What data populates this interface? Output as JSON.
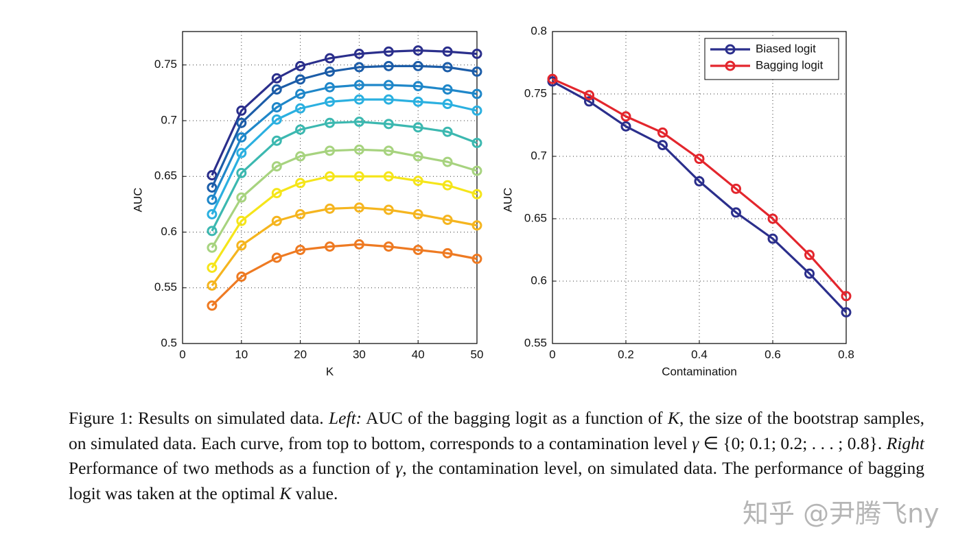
{
  "chart_data": [
    {
      "type": "line",
      "xlabel": "K",
      "ylabel": "AUC",
      "x": [
        5,
        10,
        16,
        20,
        25,
        30,
        35,
        40,
        45,
        50
      ],
      "xlim": [
        0,
        50
      ],
      "xticks": [
        0,
        10,
        20,
        30,
        40,
        50
      ],
      "ylim": [
        0.5,
        0.78
      ],
      "yticks": [
        0.5,
        0.55,
        0.6,
        0.65,
        0.7,
        0.75
      ],
      "grid": true,
      "series": [
        {
          "color": "#2b2f8c",
          "values": [
            0.651,
            0.709,
            0.738,
            0.749,
            0.756,
            0.76,
            0.762,
            0.763,
            0.762,
            0.76
          ]
        },
        {
          "color": "#1c5da8",
          "values": [
            0.64,
            0.698,
            0.728,
            0.737,
            0.744,
            0.748,
            0.749,
            0.749,
            0.748,
            0.744
          ]
        },
        {
          "color": "#1f87c9",
          "values": [
            0.629,
            0.685,
            0.712,
            0.724,
            0.73,
            0.732,
            0.732,
            0.731,
            0.728,
            0.724
          ]
        },
        {
          "color": "#2bb0e0",
          "values": [
            0.616,
            0.671,
            0.701,
            0.711,
            0.717,
            0.719,
            0.719,
            0.717,
            0.715,
            0.709
          ]
        },
        {
          "color": "#3cb8b0",
          "values": [
            0.601,
            0.653,
            0.682,
            0.692,
            0.698,
            0.699,
            0.697,
            0.694,
            0.69,
            0.68
          ]
        },
        {
          "color": "#a7d37f",
          "values": [
            0.586,
            0.631,
            0.659,
            0.668,
            0.673,
            0.674,
            0.673,
            0.668,
            0.663,
            0.655
          ]
        },
        {
          "color": "#f5e51a",
          "values": [
            0.568,
            0.61,
            0.635,
            0.644,
            0.65,
            0.65,
            0.65,
            0.646,
            0.642,
            0.634
          ]
        },
        {
          "color": "#f5b51f",
          "values": [
            0.552,
            0.588,
            0.61,
            0.616,
            0.621,
            0.622,
            0.62,
            0.616,
            0.611,
            0.606
          ]
        },
        {
          "color": "#ee7a22",
          "values": [
            0.534,
            0.56,
            0.577,
            0.584,
            0.587,
            0.589,
            0.587,
            0.584,
            0.581,
            0.576
          ]
        }
      ]
    },
    {
      "type": "line",
      "xlabel": "Contamination",
      "ylabel": "AUC",
      "x": [
        0,
        0.1,
        0.2,
        0.3,
        0.4,
        0.5,
        0.6,
        0.7,
        0.8
      ],
      "xlim": [
        0,
        0.8
      ],
      "xticks": [
        0,
        0.2,
        0.4,
        0.6,
        0.8
      ],
      "ylim": [
        0.55,
        0.8
      ],
      "yticks": [
        0.55,
        0.6,
        0.65,
        0.7,
        0.75,
        0.8
      ],
      "grid": true,
      "legend": "upper right",
      "series": [
        {
          "name": "Biased logit",
          "color": "#2b2f8c",
          "values": [
            0.76,
            0.744,
            0.724,
            0.709,
            0.68,
            0.655,
            0.634,
            0.606,
            0.575
          ]
        },
        {
          "name": "Bagging logit",
          "color": "#e3262d",
          "values": [
            0.762,
            0.749,
            0.732,
            0.719,
            0.698,
            0.674,
            0.65,
            0.621,
            0.588
          ]
        }
      ]
    }
  ],
  "caption": [
    {
      "text": "Figure 1: Results on simulated data. ",
      "style": "normal"
    },
    {
      "text": "Left:",
      "style": "italic"
    },
    {
      "text": " AUC of the bagging logit as a function of ",
      "style": "normal"
    },
    {
      "text": "K",
      "style": "italic"
    },
    {
      "text": ", the size of the bootstrap samples, on simulated data. Each curve, from top to bottom, corresponds to a contamination level ",
      "style": "normal"
    },
    {
      "text": "γ",
      "style": "italic"
    },
    {
      "text": " ∈ {0; 0.1; 0.2; . . . ; 0.8}. ",
      "style": "normal"
    },
    {
      "text": "Right",
      "style": "italic"
    },
    {
      "text": " Performance of two methods as a function of ",
      "style": "normal"
    },
    {
      "text": "γ",
      "style": "italic"
    },
    {
      "text": ", the contamination level, on simulated data. The performance of bagging logit was taken at the optimal ",
      "style": "normal"
    },
    {
      "text": "K",
      "style": "italic"
    },
    {
      "text": " value.",
      "style": "normal"
    }
  ],
  "watermark": "知乎 @尹腾飞ny"
}
